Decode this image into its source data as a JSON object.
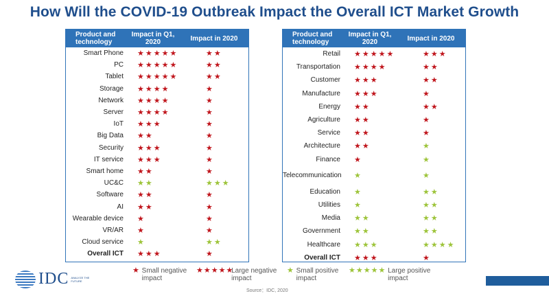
{
  "title": "How Will the COVID-19 Outbreak Impact the Overall ICT Market Growth",
  "colors": {
    "negative": "#c0161d",
    "positive": "#9dc43a",
    "header": "#2f73b8"
  },
  "headers": {
    "col1": "Product and technology",
    "col2": "Impact in Q1, 2020",
    "col3": "Impact in 2020"
  },
  "left_table": [
    {
      "name": "Smart Phone",
      "q1": {
        "n": 5,
        "t": "negative"
      },
      "y": {
        "n": 2,
        "t": "negative"
      }
    },
    {
      "name": "PC",
      "q1": {
        "n": 5,
        "t": "negative"
      },
      "y": {
        "n": 2,
        "t": "negative"
      }
    },
    {
      "name": "Tablet",
      "q1": {
        "n": 5,
        "t": "negative"
      },
      "y": {
        "n": 2,
        "t": "negative"
      }
    },
    {
      "name": "Storage",
      "q1": {
        "n": 4,
        "t": "negative"
      },
      "y": {
        "n": 1,
        "t": "negative"
      }
    },
    {
      "name": "Network",
      "q1": {
        "n": 4,
        "t": "negative"
      },
      "y": {
        "n": 1,
        "t": "negative"
      }
    },
    {
      "name": "Server",
      "q1": {
        "n": 4,
        "t": "negative"
      },
      "y": {
        "n": 1,
        "t": "negative"
      }
    },
    {
      "name": "IoT",
      "q1": {
        "n": 3,
        "t": "negative"
      },
      "y": {
        "n": 1,
        "t": "negative"
      }
    },
    {
      "name": "Big Data",
      "q1": {
        "n": 2,
        "t": "negative"
      },
      "y": {
        "n": 1,
        "t": "negative"
      }
    },
    {
      "name": "Security",
      "q1": {
        "n": 3,
        "t": "negative"
      },
      "y": {
        "n": 1,
        "t": "negative"
      }
    },
    {
      "name": "IT service",
      "q1": {
        "n": 3,
        "t": "negative"
      },
      "y": {
        "n": 1,
        "t": "negative"
      }
    },
    {
      "name": "Smart home",
      "q1": {
        "n": 2,
        "t": "negative"
      },
      "y": {
        "n": 1,
        "t": "negative"
      }
    },
    {
      "name": "UC&C",
      "q1": {
        "n": 2,
        "t": "positive"
      },
      "y": {
        "n": 3,
        "t": "positive"
      }
    },
    {
      "name": "Software",
      "q1": {
        "n": 2,
        "t": "negative"
      },
      "y": {
        "n": 1,
        "t": "negative"
      }
    },
    {
      "name": "AI",
      "q1": {
        "n": 2,
        "t": "negative"
      },
      "y": {
        "n": 1,
        "t": "negative"
      }
    },
    {
      "name": "Wearable device",
      "q1": {
        "n": 1,
        "t": "negative"
      },
      "y": {
        "n": 1,
        "t": "negative"
      }
    },
    {
      "name": "VR/AR",
      "q1": {
        "n": 1,
        "t": "negative"
      },
      "y": {
        "n": 1,
        "t": "negative"
      }
    },
    {
      "name": "Cloud service",
      "q1": {
        "n": 1,
        "t": "positive"
      },
      "y": {
        "n": 2,
        "t": "positive"
      }
    },
    {
      "name": "Overall ICT",
      "q1": {
        "n": 3,
        "t": "negative"
      },
      "y": {
        "n": 1,
        "t": "negative"
      },
      "total": true
    }
  ],
  "right_table": [
    {
      "name": "Retail",
      "q1": {
        "n": 5,
        "t": "negative"
      },
      "y": {
        "n": 3,
        "t": "negative"
      }
    },
    {
      "name": "Transportation",
      "q1": {
        "n": 4,
        "t": "negative"
      },
      "y": {
        "n": 2,
        "t": "negative"
      }
    },
    {
      "name": "Customer",
      "q1": {
        "n": 3,
        "t": "negative"
      },
      "y": {
        "n": 2,
        "t": "negative"
      }
    },
    {
      "name": "Manufacture",
      "q1": {
        "n": 3,
        "t": "negative"
      },
      "y": {
        "n": 1,
        "t": "negative"
      }
    },
    {
      "name": "Energy",
      "q1": {
        "n": 2,
        "t": "negative"
      },
      "y": {
        "n": 2,
        "t": "negative"
      }
    },
    {
      "name": "Agriculture",
      "q1": {
        "n": 2,
        "t": "negative"
      },
      "y": {
        "n": 1,
        "t": "negative"
      }
    },
    {
      "name": "Service",
      "q1": {
        "n": 2,
        "t": "negative"
      },
      "y": {
        "n": 1,
        "t": "negative"
      }
    },
    {
      "name": "Architecture",
      "q1": {
        "n": 2,
        "t": "negative"
      },
      "y": {
        "n": 1,
        "t": "positive"
      }
    },
    {
      "name": "Finance",
      "q1": {
        "n": 1,
        "t": "negative"
      },
      "y": {
        "n": 1,
        "t": "positive"
      }
    },
    {
      "name": "Telecommunications",
      "q1": {
        "n": 1,
        "t": "positive"
      },
      "y": {
        "n": 1,
        "t": "positive"
      },
      "wrap": true
    },
    {
      "name": "Education",
      "q1": {
        "n": 1,
        "t": "positive"
      },
      "y": {
        "n": 2,
        "t": "positive"
      }
    },
    {
      "name": "Utilities",
      "q1": {
        "n": 1,
        "t": "positive"
      },
      "y": {
        "n": 2,
        "t": "positive"
      }
    },
    {
      "name": "Media",
      "q1": {
        "n": 2,
        "t": "positive"
      },
      "y": {
        "n": 2,
        "t": "positive"
      }
    },
    {
      "name": "Government",
      "q1": {
        "n": 2,
        "t": "positive"
      },
      "y": {
        "n": 2,
        "t": "positive"
      }
    },
    {
      "name": "Healthcare",
      "q1": {
        "n": 3,
        "t": "positive"
      },
      "y": {
        "n": 4,
        "t": "positive"
      }
    },
    {
      "name": "Overall ICT",
      "q1": {
        "n": 3,
        "t": "negative"
      },
      "y": {
        "n": 1,
        "t": "negative"
      },
      "total": true
    }
  ],
  "legend": {
    "small_negative": "Small negative impact",
    "large_negative": "Large negative impact",
    "small_positive": "Small positive impact",
    "large_positive": "Large positive impact"
  },
  "logo": {
    "text": "IDC",
    "tagline": "ANALYZE THE FUTURE"
  },
  "source": "Source：IDC, 2020"
}
